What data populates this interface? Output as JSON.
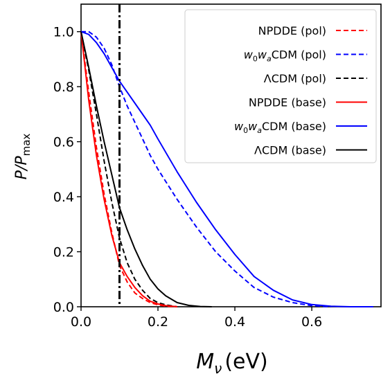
{
  "chart_data": {
    "type": "line",
    "xlabel": {
      "main": "M",
      "sub": "ν",
      "unit": "(eV)"
    },
    "ylabel": {
      "main": "P/P",
      "sub": "max"
    },
    "xlim": [
      0.0,
      0.78
    ],
    "ylim": [
      0.0,
      1.1
    ],
    "xticks": [
      "0.0",
      "0.2",
      "0.4",
      "0.6"
    ],
    "xtick_values": [
      0.0,
      0.2,
      0.4,
      0.6
    ],
    "yticks": [
      "0.0",
      "0.2",
      "0.4",
      "0.6",
      "0.8",
      "1.0"
    ],
    "ytick_values": [
      0.0,
      0.2,
      0.4,
      0.6,
      0.8,
      1.0
    ],
    "grid": false,
    "legend_position": "top-right",
    "vline": {
      "x": 0.1,
      "style": "dashdot",
      "color": "#000000"
    },
    "series": [
      {
        "name": "NPDDE (pol)",
        "color": "#ff0000",
        "style": "dashed",
        "x": [
          0.0,
          0.02,
          0.04,
          0.06,
          0.08,
          0.1,
          0.12,
          0.14,
          0.16,
          0.18,
          0.2,
          0.22,
          0.25
        ],
        "y": [
          1.0,
          0.78,
          0.58,
          0.41,
          0.27,
          0.15,
          0.09,
          0.05,
          0.03,
          0.015,
          0.007,
          0.002,
          0.0
        ]
      },
      {
        "name": "w0waCDM (pol)",
        "color": "#0000ff",
        "style": "dashed",
        "x": [
          0.0,
          0.02,
          0.04,
          0.06,
          0.08,
          0.1,
          0.12,
          0.15,
          0.18,
          0.2,
          0.25,
          0.3,
          0.35,
          0.4,
          0.45,
          0.5,
          0.55,
          0.6,
          0.65
        ],
        "y": [
          1.0,
          1.0,
          0.98,
          0.94,
          0.88,
          0.8,
          0.73,
          0.64,
          0.55,
          0.5,
          0.39,
          0.29,
          0.2,
          0.13,
          0.07,
          0.035,
          0.015,
          0.004,
          0.0
        ]
      },
      {
        "name": "ΛCDM (pol)",
        "color": "#000000",
        "style": "dashed",
        "x": [
          0.0,
          0.02,
          0.04,
          0.06,
          0.08,
          0.1,
          0.12,
          0.14,
          0.16,
          0.18,
          0.2,
          0.22,
          0.25
        ],
        "y": [
          1.0,
          0.86,
          0.7,
          0.53,
          0.38,
          0.25,
          0.16,
          0.1,
          0.06,
          0.03,
          0.015,
          0.007,
          0.0
        ]
      },
      {
        "name": "NPDDE (base)",
        "color": "#ff0000",
        "style": "solid",
        "x": [
          0.0,
          0.02,
          0.04,
          0.06,
          0.08,
          0.1,
          0.12,
          0.14,
          0.16,
          0.18,
          0.2,
          0.22,
          0.25
        ],
        "y": [
          1.0,
          0.75,
          0.55,
          0.39,
          0.26,
          0.16,
          0.11,
          0.07,
          0.04,
          0.02,
          0.01,
          0.004,
          0.0
        ]
      },
      {
        "name": "w0waCDM (base)",
        "color": "#0000ff",
        "style": "solid",
        "x": [
          0.0,
          0.02,
          0.04,
          0.06,
          0.08,
          0.1,
          0.12,
          0.15,
          0.18,
          0.2,
          0.25,
          0.3,
          0.35,
          0.4,
          0.45,
          0.5,
          0.55,
          0.6,
          0.65,
          0.7,
          0.76
        ],
        "y": [
          1.0,
          0.99,
          0.96,
          0.92,
          0.87,
          0.82,
          0.78,
          0.72,
          0.66,
          0.61,
          0.49,
          0.38,
          0.28,
          0.19,
          0.11,
          0.06,
          0.025,
          0.008,
          0.002,
          0.0,
          0.0
        ]
      },
      {
        "name": "ΛCDM (base)",
        "color": "#000000",
        "style": "solid",
        "x": [
          0.0,
          0.02,
          0.04,
          0.06,
          0.08,
          0.1,
          0.12,
          0.14,
          0.16,
          0.18,
          0.2,
          0.22,
          0.25,
          0.28,
          0.31,
          0.34
        ],
        "y": [
          1.0,
          0.87,
          0.73,
          0.6,
          0.48,
          0.36,
          0.28,
          0.21,
          0.15,
          0.1,
          0.065,
          0.04,
          0.015,
          0.005,
          0.001,
          0.0
        ]
      }
    ],
    "legend": [
      {
        "label": "NPDDE (pol)",
        "plain": true
      },
      {
        "w": "w",
        "w0sub": "0",
        "wa": "w",
        "wasub": "a",
        "tail": "CDM (pol)",
        "plain": false
      },
      {
        "label": "ΛCDM (pol)",
        "plain": true
      },
      {
        "label": "NPDDE (base)",
        "plain": true
      },
      {
        "w": "w",
        "w0sub": "0",
        "wa": "w",
        "wasub": "a",
        "tail": "CDM (base)",
        "plain": false
      },
      {
        "label": "ΛCDM (base)",
        "plain": true
      }
    ]
  }
}
